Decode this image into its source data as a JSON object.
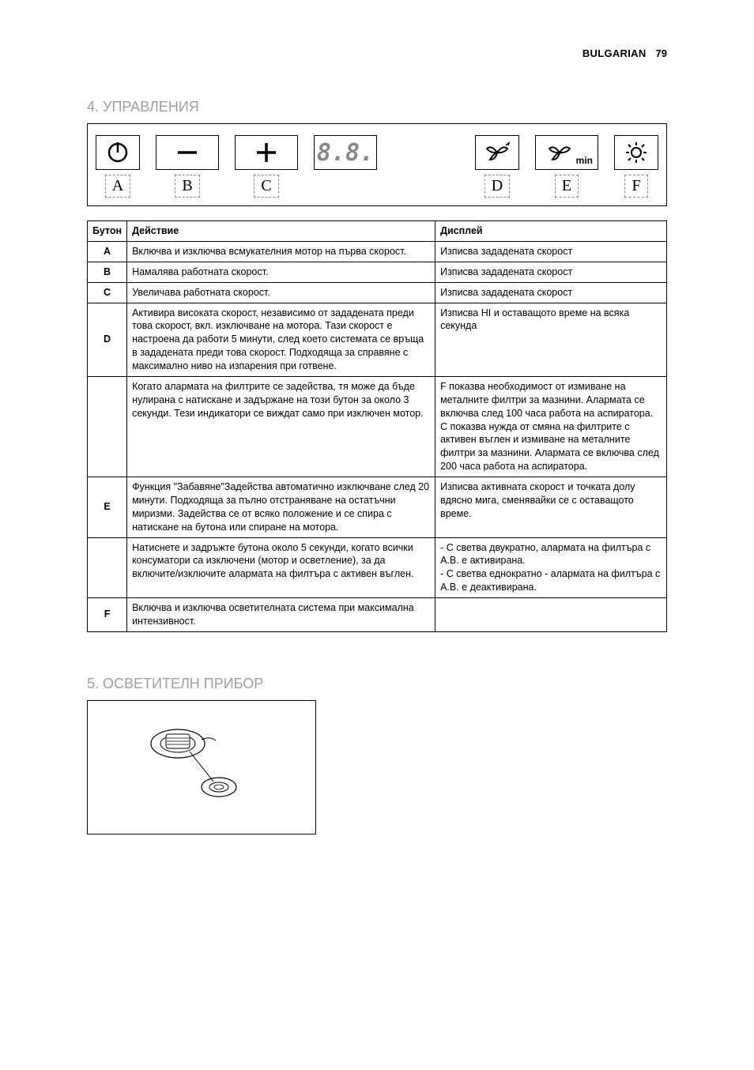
{
  "header": {
    "language": "BULGARIAN",
    "page": "79"
  },
  "section4": {
    "title": "4.  УПРАВЛЕНИЯ",
    "panel_labels": {
      "A": "A",
      "B": "B",
      "C": "C",
      "D": "D",
      "E": "E",
      "F": "F"
    },
    "display_88": "8.8.",
    "d_min": "min",
    "table": {
      "th_button": "Бутон",
      "th_action": "Действие",
      "th_display": "Дисплей",
      "rows": [
        {
          "btn": "A",
          "action": "Включва и изключва всмукателния мотор на първа скорост.",
          "display": "Изписва зададената скорост"
        },
        {
          "btn": "B",
          "action": "Намалява работната скорост.",
          "display": "Изписва зададената скорост"
        },
        {
          "btn": "C",
          "action": "Увеличава работната скорост.",
          "display": "Изписва зададената скорост"
        },
        {
          "btn": "D",
          "action": "Активира високата скорост, независимо от зададената преди това скорост, вкл. изключване на мотора. Тази скорост е настроена да работи 5 минути, след което системата се връща в зададената преди това скорост. Подходяща за справяне с максимално ниво на изпарения при готвене.",
          "display": "Изписва HI и оставащото време на всяка секунда"
        },
        {
          "btn": "",
          "action": "Когато алармата на филтрите се задейства, тя може да бъде нулирана с натискане и задържане на този бутон за около 3 секунди. Тези индикатори се виждат само при изключен мотор.",
          "display": "F        показва необходимост от измиване на металните филтри за мазнини. Алармата се включва след 100 часа работа на аспиратора.\nC        показва нужда от смяна на филтрите с активен въглен и измиване на металните филтри за мазнини. Алармата се включва след 200 часа работа на аспиратора."
        },
        {
          "btn": "E",
          "action": "Функция \"Забавяне\"Задейства автоматично изключване след 20 минути. Подходяща за пълно отстраняване на остатъчни миризми. Задейства се от всяко положение и се спира с натискане на бутона или спиране на мотора.",
          "display": "Изписва активната скорост и точката долу вдясно мига, сменявайки се с оставащото време."
        },
        {
          "btn": "",
          "action": "Натиснете и задръжте бутона около 5 секунди, когато всички консуматори са изключени (мотор и осветление), за да включите/изключите алармата на филтъра с активен въглен.",
          "display": "- C светва двукратно, алармата на филтъра с А.В. е активирана.\n- C светва еднократно - алармата на филтъра с А.В. е деактивирана."
        },
        {
          "btn": "F",
          "action": "Включва и изключва осветителната система при максимална интензивност.",
          "display": ""
        }
      ]
    }
  },
  "section5": {
    "title": "5.  ОСВЕТИТЕЛН ПРИБОР"
  },
  "colors": {
    "title_gray": "#a0a0a0",
    "text": "#000000",
    "border": "#000000",
    "bg": "#ffffff"
  }
}
